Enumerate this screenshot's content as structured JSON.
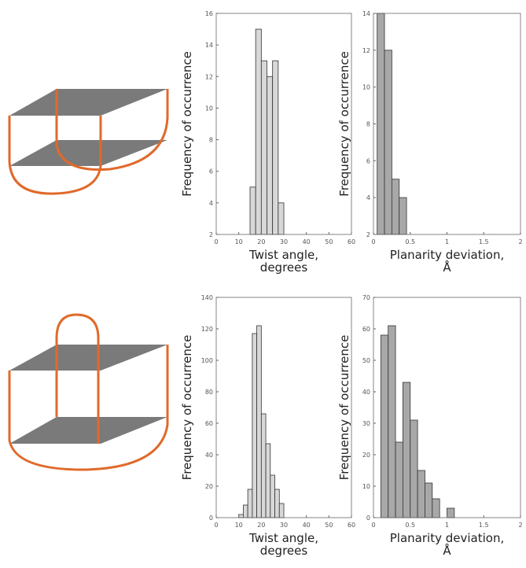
{
  "chart_data": [
    {
      "type": "histogram",
      "xlabel": [
        "Twist angle,",
        "degrees"
      ],
      "ylabel": "Frequency of occurrence",
      "bins": [
        15,
        17.5,
        20,
        22.5,
        25,
        27.5,
        30
      ],
      "values": [
        5,
        15,
        13,
        12,
        13,
        4
      ],
      "color": "#d8d8d8",
      "xlim": [
        0,
        60
      ],
      "xticks": [
        0,
        10,
        20,
        30,
        40,
        50,
        60
      ],
      "ylim": [
        2,
        16
      ],
      "yticks": [
        2,
        4,
        6,
        8,
        10,
        12,
        14,
        16
      ]
    },
    {
      "type": "histogram",
      "xlabel": [
        "Planarity deviation,",
        "Å"
      ],
      "ylabel": "Frequency of occurrence",
      "bins": [
        0.05,
        0.15,
        0.25,
        0.35,
        0.45
      ],
      "values": [
        14,
        12,
        5,
        4
      ],
      "color": "#a8a8a8",
      "xlim": [
        0,
        2
      ],
      "xticks": [
        0,
        0.5,
        1,
        1.5,
        2
      ],
      "ylim": [
        2,
        14
      ],
      "yticks": [
        2,
        4,
        6,
        8,
        10,
        12,
        14
      ]
    },
    {
      "type": "histogram",
      "xlabel": [
        "Twist angle,",
        "degrees"
      ],
      "ylabel": "Frequency of occurrence",
      "bins": [
        10,
        12,
        14,
        16,
        18,
        20,
        22,
        24,
        26,
        28,
        30
      ],
      "values": [
        2,
        8,
        18,
        117,
        122,
        66,
        47,
        27,
        18,
        9
      ],
      "color": "#d8d8d8",
      "xlim": [
        0,
        60
      ],
      "xticks": [
        0,
        10,
        20,
        30,
        40,
        50,
        60
      ],
      "ylim": [
        0,
        140
      ],
      "yticks": [
        0,
        20,
        40,
        60,
        80,
        100,
        120,
        140
      ]
    },
    {
      "type": "histogram",
      "xlabel": [
        "Planarity deviation,",
        "Å"
      ],
      "ylabel": "Frequency of occurrence",
      "bins": [
        0.1,
        0.2,
        0.3,
        0.4,
        0.5,
        0.6,
        0.7,
        0.8,
        0.9,
        1.0,
        1.1
      ],
      "values": [
        58,
        61,
        24,
        43,
        31,
        15,
        11,
        6,
        0,
        3
      ],
      "color": "#a8a8a8",
      "xlim": [
        0,
        2
      ],
      "xticks": [
        0,
        0.5,
        1,
        1.5,
        2
      ],
      "ylim": [
        0,
        70
      ],
      "yticks": [
        0,
        10,
        20,
        30,
        40,
        50,
        60,
        70
      ]
    }
  ]
}
